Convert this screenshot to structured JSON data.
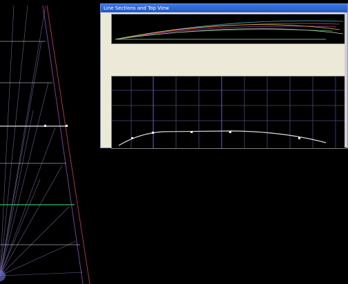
{
  "window": {
    "title": "Line Sections and Top View"
  }
}
